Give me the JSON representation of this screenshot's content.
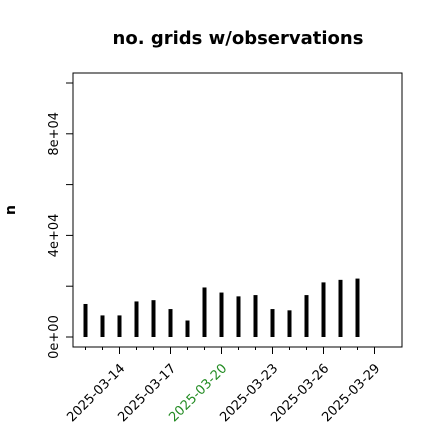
{
  "chart_data": {
    "type": "bar",
    "title": "no. grids w/observations",
    "xlabel": "",
    "ylabel": "n",
    "ylim": [
      0,
      100000
    ],
    "y_ticks": [
      {
        "value": 0,
        "label": "0e+00"
      },
      {
        "value": 40000,
        "label": "4e+04"
      },
      {
        "value": 80000,
        "label": "8e+04"
      }
    ],
    "x_tick_labels": [
      {
        "date": "2025-03-14",
        "label": "2025-03-14",
        "color": "#000000"
      },
      {
        "date": "2025-03-17",
        "label": "2025-03-17",
        "color": "#000000"
      },
      {
        "date": "2025-03-20",
        "label": "2025-03-20",
        "color": "#228B22"
      },
      {
        "date": "2025-03-23",
        "label": "2025-03-23",
        "color": "#000000"
      },
      {
        "date": "2025-03-26",
        "label": "2025-03-26",
        "color": "#000000"
      },
      {
        "date": "2025-03-29",
        "label": "2025-03-29",
        "color": "#000000"
      }
    ],
    "x_minor_tick_dates": [
      "2025-03-12",
      "2025-03-13",
      "2025-03-15",
      "2025-03-16",
      "2025-03-18",
      "2025-03-19",
      "2025-03-21",
      "2025-03-22",
      "2025-03-24",
      "2025-03-25",
      "2025-03-27",
      "2025-03-28"
    ],
    "categories": [
      "2025-03-12",
      "2025-03-13",
      "2025-03-14",
      "2025-03-15",
      "2025-03-16",
      "2025-03-17",
      "2025-03-18",
      "2025-03-19",
      "2025-03-20",
      "2025-03-21",
      "2025-03-22",
      "2025-03-23",
      "2025-03-24",
      "2025-03-25",
      "2025-03-26",
      "2025-03-27",
      "2025-03-28",
      "2025-03-29"
    ],
    "values": [
      13000,
      8500,
      8500,
      14000,
      14500,
      11000,
      6500,
      19500,
      17500,
      16000,
      16500,
      11000,
      10500,
      16500,
      21500,
      22500,
      23000,
      0
    ],
    "x_range": [
      "2025-03-10",
      "2025-03-30"
    ],
    "grid": false,
    "bar_color": "#000000"
  }
}
